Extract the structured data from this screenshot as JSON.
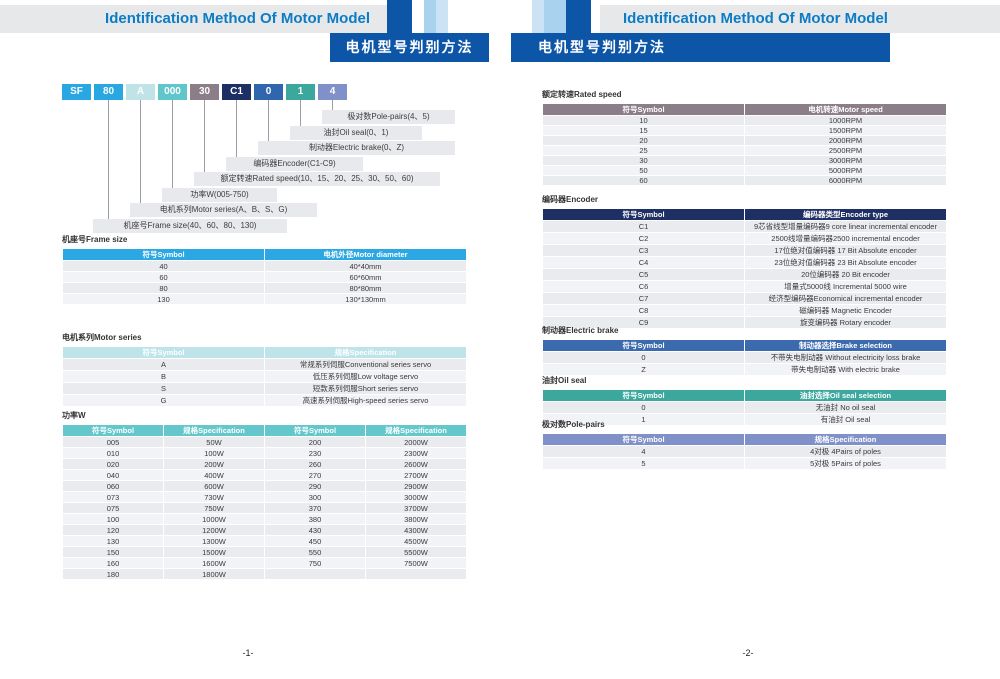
{
  "colors": {
    "brand_blue": "#0d55a6",
    "title_text_blue": "#0b7cc5",
    "band_gray": "#e7e8ea",
    "light_blue_square": "#a9d2ee",
    "pale_blue_square": "#cce3f5",
    "label_bar_gray": "#e8e9ec"
  },
  "page1": {
    "header": {
      "title_en": "Identification Method Of Motor Model",
      "title_zh": "电机型号判别方法"
    },
    "model_diagram": {
      "boxes": [
        {
          "code": "SF",
          "color": "#29a7e2"
        },
        {
          "code": "80",
          "color": "#29a7e2"
        },
        {
          "code": "A",
          "color": "#bfe3e7"
        },
        {
          "code": "000",
          "color": "#5fc7cb"
        },
        {
          "code": "30",
          "color": "#8c7e88"
        },
        {
          "code": "C1",
          "color": "#1e2f63"
        },
        {
          "code": "0",
          "color": "#2f66ae"
        },
        {
          "code": "1",
          "color": "#3ba79d"
        },
        {
          "code": "4",
          "color": "#8090c8"
        }
      ],
      "labels": [
        "极对数Pole-pairs(4、5)",
        "油封Oil seal(0、1)",
        "制动器Electric brake(0、Z)",
        "编码器Encoder(C1-C9)",
        "额定转速Rated speed(10、15、20、25、30、50、60)",
        "功率W(005-750)",
        "电机系列Motor series(A、B、S、G)",
        "机座号Frame size(40、60、80、130)"
      ]
    },
    "frame_size_table": {
      "title": "机座号Frame size",
      "header_color": "#2ba7e3",
      "header": [
        "符号Symbol",
        "电机外径Motor diameter"
      ],
      "rows": [
        [
          "40",
          "40*40mm"
        ],
        [
          "60",
          "60*60mm"
        ],
        [
          "80",
          "80*80mm"
        ],
        [
          "130",
          "130*130mm"
        ]
      ]
    },
    "motor_series_table": {
      "title": "电机系列Motor series",
      "header_color": "#bee3e9",
      "header": [
        "符号Symbol",
        "规格Specification"
      ],
      "rows": [
        [
          "A",
          "常规系列伺服Conventional series servo"
        ],
        [
          "B",
          "低压系列伺服Low voltage servo"
        ],
        [
          "S",
          "短款系列伺服Short series servo"
        ],
        [
          "G",
          "高速系列伺服High-speed series servo"
        ]
      ]
    },
    "power_table": {
      "title": "功率W",
      "header_color": "#63c7cb",
      "header": [
        "符号Symbol",
        "规格Specification",
        "符号Symbol",
        "规格Specification"
      ],
      "rows": [
        [
          "005",
          "50W",
          "200",
          "2000W"
        ],
        [
          "010",
          "100W",
          "230",
          "2300W"
        ],
        [
          "020",
          "200W",
          "260",
          "2600W"
        ],
        [
          "040",
          "400W",
          "270",
          "2700W"
        ],
        [
          "060",
          "600W",
          "290",
          "2900W"
        ],
        [
          "073",
          "730W",
          "300",
          "3000W"
        ],
        [
          "075",
          "750W",
          "370",
          "3700W"
        ],
        [
          "100",
          "1000W",
          "380",
          "3800W"
        ],
        [
          "120",
          "1200W",
          "430",
          "4300W"
        ],
        [
          "130",
          "1300W",
          "450",
          "4500W"
        ],
        [
          "150",
          "1500W",
          "550",
          "5500W"
        ],
        [
          "160",
          "1600W",
          "750",
          "7500W"
        ],
        [
          "180",
          "1800W",
          "",
          ""
        ]
      ]
    },
    "page_number": "-1-"
  },
  "page2": {
    "header": {
      "title_en": "Identification Method Of Motor Model",
      "title_zh": "电机型号判别方法"
    },
    "rated_speed_table": {
      "title": "额定转速Rated speed",
      "header_color": "#8c7e88",
      "header": [
        "符号Symbol",
        "电机转速Motor speed"
      ],
      "rows": [
        [
          "10",
          "1000RPM"
        ],
        [
          "15",
          "1500RPM"
        ],
        [
          "20",
          "2000RPM"
        ],
        [
          "25",
          "2500RPM"
        ],
        [
          "30",
          "3000RPM"
        ],
        [
          "50",
          "5000RPM"
        ],
        [
          "60",
          "6000RPM"
        ]
      ]
    },
    "encoder_table": {
      "title": "编码器Encoder",
      "header_color": "#1e2f63",
      "header": [
        "符号Symbol",
        "编码器类型Encoder type"
      ],
      "rows": [
        [
          "C1",
          "9芯省线型增量编码器9 core linear incremental encoder"
        ],
        [
          "C2",
          "2500线增量编码器2500 incremental encoder"
        ],
        [
          "C3",
          "17位绝对值编码器 17 Bit Absolute encoder"
        ],
        [
          "C4",
          "23位绝对值编码器 23 Bit Absolute encoder"
        ],
        [
          "C5",
          "20位编码器 20 Bit encoder"
        ],
        [
          "C6",
          "增量式5000线 Incremental 5000 wire"
        ],
        [
          "C7",
          "经济型编码器Economical incremental encoder"
        ],
        [
          "C8",
          "磁编码器 Magnetic Encoder"
        ],
        [
          "C9",
          "旋变编码器 Rotary encoder"
        ]
      ]
    },
    "brake_table": {
      "title": "制动器Electric brake",
      "header_color": "#3c6aaf",
      "header": [
        "符号Symbol",
        "制动器选择Brake selection"
      ],
      "rows": [
        [
          "0",
          "不带失电制动器 Without electricity loss brake"
        ],
        [
          "Z",
          "带失电制动器 With electric brake"
        ]
      ]
    },
    "oil_seal_table": {
      "title": "油封Oil seal",
      "header_color": "#3ba79d",
      "header": [
        "符号Symbol",
        "油封选择Oil seal selection"
      ],
      "rows": [
        [
          "0",
          "无油封 No oil seal"
        ],
        [
          "1",
          "有油封 Oil seal"
        ]
      ]
    },
    "pole_pairs_table": {
      "title": "极对数Pole-pairs",
      "header_color": "#8090c8",
      "header": [
        "符号Symbol",
        "规格Specification"
      ],
      "rows": [
        [
          "4",
          "4对极 4Pairs of poles"
        ],
        [
          "5",
          "5对极 5Pairs of poles"
        ]
      ]
    },
    "page_number": "-2-"
  }
}
